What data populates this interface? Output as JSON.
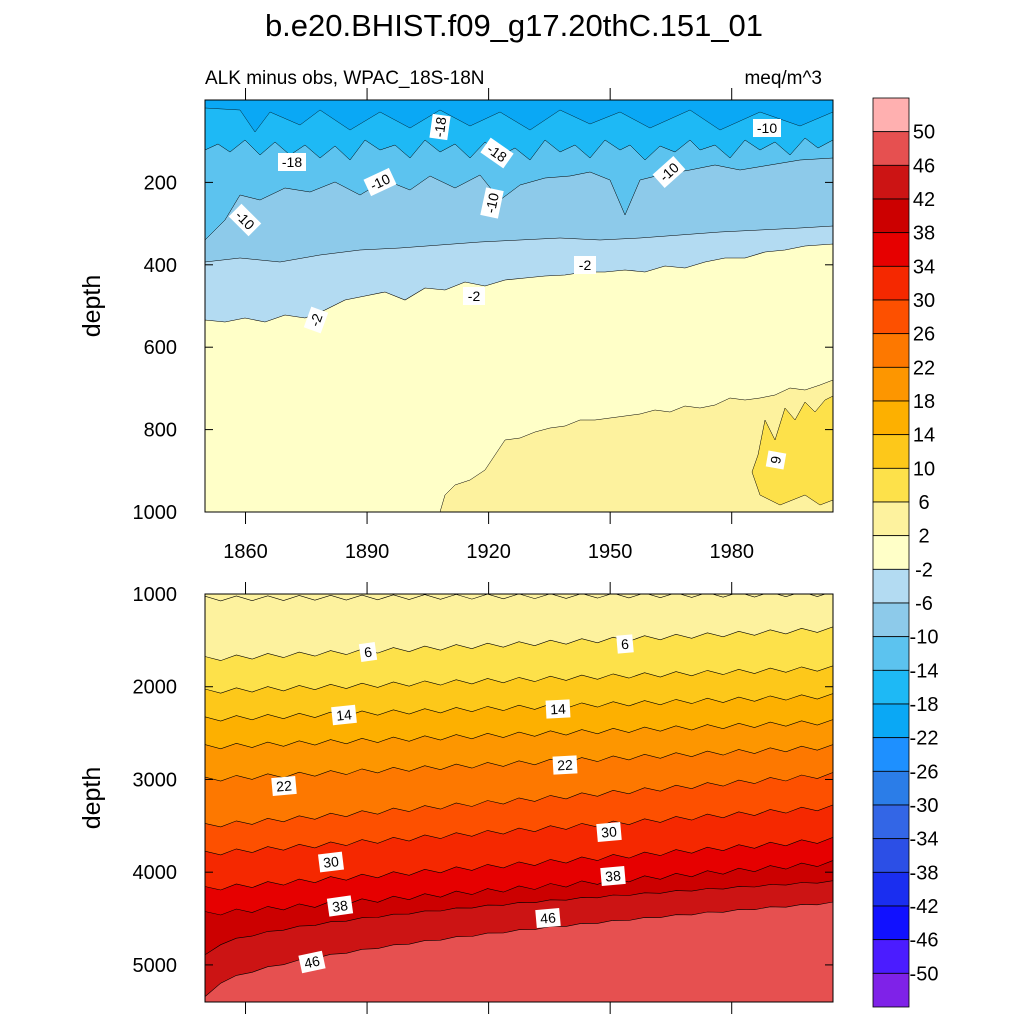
{
  "chart_data": {
    "type": "contour",
    "title": "b.e20.BHIST.f09_g17.20thC.151_01",
    "subtitle_left": "ALK minus obs, WPAC_18S-18N",
    "subtitle_right": "meq/m^3",
    "x_range": [
      1850,
      2005
    ],
    "x_ticks": [
      1860,
      1890,
      1920,
      1950,
      1980
    ],
    "colorbar": {
      "levels": [
        -50,
        -46,
        -42,
        -38,
        -34,
        -30,
        -26,
        -22,
        -18,
        -14,
        -10,
        -6,
        -2,
        2,
        6,
        10,
        14,
        18,
        22,
        26,
        30,
        34,
        38,
        42,
        46,
        50
      ],
      "colors": [
        "#7f22e8",
        "#4b1cff",
        "#1111ff",
        "#1a2ef0",
        "#2c4fe6",
        "#3366e6",
        "#2b7de8",
        "#1e90ff",
        "#0aa8f5",
        "#1eb9f5",
        "#5cc3ef",
        "#8dcaea",
        "#b3dbf2",
        "#ffffc8",
        "#fdf29e",
        "#fde14a",
        "#fdc81a",
        "#fdb000",
        "#fd9600",
        "#fd7800",
        "#fd5000",
        "#f52800",
        "#e60000",
        "#cc0000",
        "#cc1414",
        "#e65050",
        "#ffb0b0"
      ]
    },
    "panels": [
      {
        "name": "upper",
        "ylabel": "depth",
        "y_range": [
          0,
          1000
        ],
        "y_reversed": true,
        "y_ticks": [
          200,
          400,
          600,
          800,
          1000
        ],
        "contour_labels": [
          "-18",
          "-18",
          "-18",
          "-10",
          "-10",
          "-10",
          "-10",
          "-10",
          "-2",
          "-2",
          "-2",
          "6"
        ],
        "bands": [
          {
            "upper": 0,
            "lower_start": 20,
            "lower_end": 20,
            "value_range": [
              -18,
              -14
            ]
          },
          {
            "upper": 20,
            "lower_start": 120,
            "lower_end": 90,
            "value_range": [
              -18,
              -14
            ]
          },
          {
            "upper": 120,
            "lower_start": 200,
            "lower_end": 130,
            "value_range": [
              -14,
              -10
            ]
          },
          {
            "upper": 200,
            "lower_start": 330,
            "lower_end": 270,
            "value_range": [
              -10,
              -6
            ]
          },
          {
            "upper": 330,
            "lower_start": 550,
            "lower_end": 350,
            "value_range": [
              -6,
              -2
            ]
          },
          {
            "upper": 550,
            "lower_start": 1000,
            "lower_end": 1000,
            "value_range": [
              -2,
              2
            ]
          },
          {
            "upper": 700,
            "lower_start": 1000,
            "lower_end": 1000,
            "value_range": [
              2,
              6
            ]
          }
        ]
      },
      {
        "name": "lower",
        "ylabel": "depth",
        "y_range": [
          1000,
          5400
        ],
        "y_reversed": true,
        "y_ticks": [
          1000,
          2000,
          3000,
          4000,
          5000
        ],
        "contour_labels": [
          "6",
          "6",
          "14",
          "14",
          "22",
          "22",
          "30",
          "30",
          "38",
          "38",
          "46",
          "46"
        ]
      }
    ]
  }
}
